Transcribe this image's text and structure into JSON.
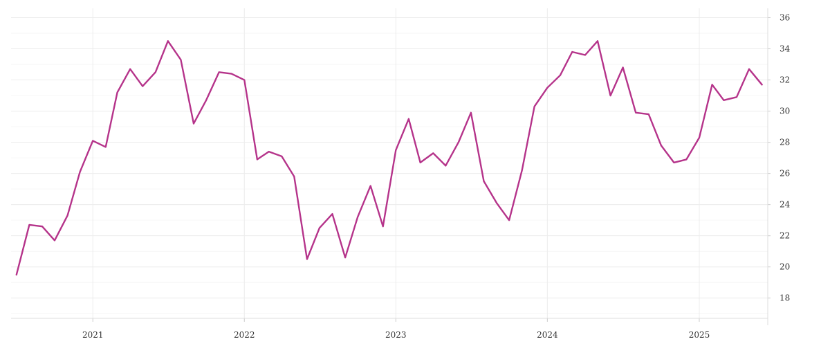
{
  "chart_data": {
    "type": "line",
    "title": "",
    "xlabel": "",
    "ylabel": "",
    "x_tick_labels": [
      "2021",
      "2022",
      "2023",
      "2024",
      "2025"
    ],
    "y_ticks": [
      18,
      20,
      22,
      24,
      26,
      28,
      30,
      32,
      34,
      36
    ],
    "ylim": [
      16.7,
      36.6
    ],
    "xlim": [
      "2020-06-18",
      "2025-06-15"
    ],
    "grid": true,
    "legend": "none",
    "line_color": "#b5338a",
    "series": [
      {
        "x": [
          "2020-07",
          "2020-08",
          "2020-09",
          "2020-10",
          "2020-11",
          "2020-12",
          "2021-01",
          "2021-02",
          "2021-03",
          "2021-04",
          "2021-05",
          "2021-06",
          "2021-07",
          "2021-08",
          "2021-09",
          "2021-10",
          "2021-11",
          "2021-12",
          "2022-01",
          "2022-02",
          "2022-03",
          "2022-04",
          "2022-05",
          "2022-06",
          "2022-07",
          "2022-08",
          "2022-09",
          "2022-10",
          "2022-11",
          "2022-12",
          "2023-01",
          "2023-02",
          "2023-03",
          "2023-04",
          "2023-05",
          "2023-06",
          "2023-07",
          "2023-08",
          "2023-09",
          "2023-10",
          "2023-11",
          "2023-12",
          "2024-01",
          "2024-02",
          "2024-03",
          "2024-04",
          "2024-05",
          "2024-06",
          "2024-07",
          "2024-08",
          "2024-09",
          "2024-10",
          "2024-11",
          "2024-12",
          "2025-01",
          "2025-02",
          "2025-03",
          "2025-04",
          "2025-05",
          "2025-06"
        ],
        "values": [
          19.5,
          22.7,
          22.6,
          21.7,
          23.3,
          26.1,
          28.1,
          27.7,
          31.2,
          32.7,
          31.6,
          32.5,
          34.5,
          33.3,
          29.2,
          30.7,
          32.5,
          32.4,
          32.0,
          26.9,
          27.4,
          27.1,
          25.8,
          20.5,
          22.5,
          23.4,
          20.6,
          23.2,
          25.2,
          22.6,
          27.5,
          29.5,
          26.7,
          27.3,
          26.5,
          28.0,
          29.9,
          25.5,
          24.1,
          23.0,
          26.2,
          30.3,
          31.5,
          32.3,
          33.8,
          33.6,
          34.5,
          31.0,
          32.8,
          29.9,
          29.8,
          27.8,
          26.7,
          26.9,
          28.3,
          31.7,
          30.7,
          30.9,
          32.7,
          31.7
        ]
      }
    ]
  }
}
